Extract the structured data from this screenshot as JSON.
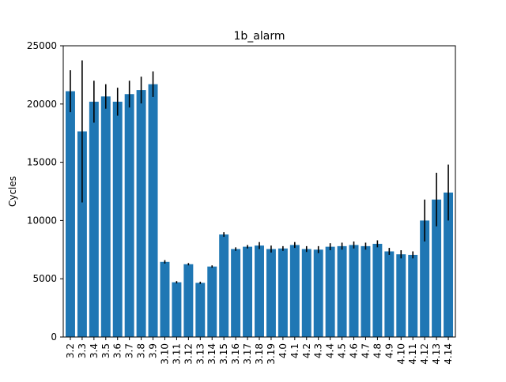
{
  "chart_data": {
    "type": "bar",
    "title": "1b_alarm",
    "xlabel": "",
    "ylabel": "Cycles",
    "ylim": [
      0,
      25000
    ],
    "yticks": [
      0,
      5000,
      10000,
      15000,
      20000,
      25000
    ],
    "grid": false,
    "legend": "none",
    "bar_color": "#1f77b4",
    "error_color": "#000000",
    "categories": [
      "3.2",
      "3.3",
      "3.4",
      "3.5",
      "3.6",
      "3.7",
      "3.8",
      "3.9",
      "3.10",
      "3.11",
      "3.12",
      "3.13",
      "3.14",
      "3.15",
      "3.16",
      "3.17",
      "3.18",
      "3.19",
      "4.0",
      "4.1",
      "4.2",
      "4.3",
      "4.4",
      "4.5",
      "4.6",
      "4.7",
      "4.8",
      "4.9",
      "4.10",
      "4.11",
      "4.12",
      "4.13",
      "4.14"
    ],
    "values": [
      21100,
      17650,
      20200,
      20650,
      20200,
      20850,
      21200,
      21700,
      6450,
      4700,
      6250,
      4650,
      6050,
      8800,
      7550,
      7750,
      7850,
      7550,
      7600,
      7900,
      7550,
      7500,
      7750,
      7800,
      7900,
      7800,
      8000,
      7350,
      7100,
      7050,
      10000,
      11800,
      12400
    ],
    "errors": [
      1800,
      6100,
      1800,
      1050,
      1200,
      1150,
      1150,
      1100,
      150,
      100,
      100,
      100,
      100,
      200,
      150,
      150,
      300,
      300,
      200,
      250,
      250,
      300,
      300,
      300,
      300,
      300,
      300,
      300,
      350,
      300,
      1800,
      2300,
      2400
    ]
  }
}
